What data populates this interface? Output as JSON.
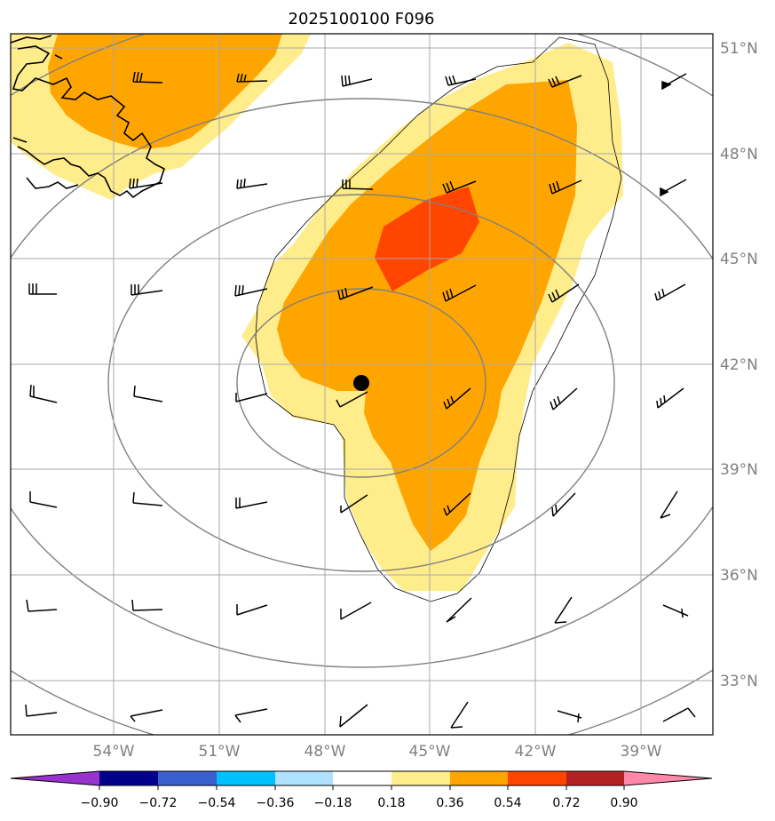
{
  "title": "2025100100 F096",
  "lat_labels": [
    "51°N",
    "48°N",
    "45°N",
    "42°N",
    "39°N",
    "36°N",
    "33°N"
  ],
  "lon_labels": [
    "54°W",
    "51°W",
    "48°W",
    "45°W",
    "42°W",
    "39°W"
  ],
  "colorbar": {
    "labels": [
      "−0.90",
      "−0.72",
      "−0.54",
      "−0.36",
      "−0.18",
      "0.18",
      "0.36",
      "0.54",
      "0.72",
      "0.90"
    ],
    "colors": [
      "#9932cc",
      "#00008b",
      "#3a5fcd",
      "#00bfff",
      "#b0e0ff",
      "#ffffff",
      "#ffec8b",
      "#ffa500",
      "#ff4500",
      "#b22222",
      "#ff88aa"
    ]
  },
  "fill_colors": {
    "light": "#ffec8b",
    "medium": "#ffa500",
    "high": "#ff4500"
  },
  "storm_center": {
    "lon": -46.9,
    "lat": 41.4
  }
}
